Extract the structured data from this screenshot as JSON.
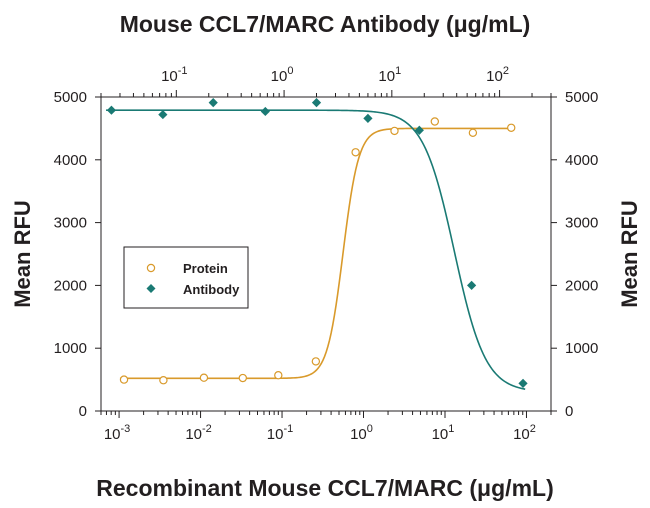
{
  "chart_data": {
    "type": "scatter",
    "title": "",
    "bottom_axis": {
      "label": "Recombinant Mouse CCL7/MARC (μg/mL)",
      "scale": "log",
      "range": [
        0.0006,
        200
      ],
      "ticks": [
        {
          "value": 0.001,
          "base": "10",
          "exp": "-3"
        },
        {
          "value": 0.01,
          "base": "10",
          "exp": "-2"
        },
        {
          "value": 0.1,
          "base": "10",
          "exp": "-1"
        },
        {
          "value": 1,
          "base": "10",
          "exp": "0"
        },
        {
          "value": 10,
          "base": "10",
          "exp": "1"
        },
        {
          "value": 100,
          "base": "10",
          "exp": "2"
        }
      ]
    },
    "top_axis": {
      "label": "Mouse CCL7/MARC Antibody (μg/mL)",
      "scale": "log",
      "range": [
        0.02,
        300
      ],
      "ticks": [
        {
          "value": 0.1,
          "base": "10",
          "exp": "-1"
        },
        {
          "value": 1,
          "base": "10",
          "exp": "0"
        },
        {
          "value": 10,
          "base": "10",
          "exp": "1"
        },
        {
          "value": 100,
          "base": "10",
          "exp": "2"
        }
      ]
    },
    "left_axis": {
      "label": "Mean RFU",
      "range": [
        0,
        5000
      ],
      "ticks": [
        0,
        1000,
        2000,
        3000,
        4000,
        5000
      ]
    },
    "right_axis": {
      "label": "Mean RFU",
      "range": [
        0,
        5000
      ],
      "ticks": [
        0,
        1000,
        2000,
        3000,
        4000,
        5000
      ]
    },
    "legend": {
      "placement": "middle-left"
    },
    "series": [
      {
        "name": "Protein",
        "axis": "bottom",
        "marker": "open-circle",
        "color": "#d99a2b",
        "x": [
          0.00115,
          0.0035,
          0.011,
          0.033,
          0.09,
          0.26,
          0.8,
          2.4,
          7.5,
          22,
          65
        ],
        "y": [
          500,
          490,
          530,
          525,
          570,
          790,
          4120,
          4460,
          4610,
          4430,
          4510
        ],
        "fit": {
          "bottom": 520,
          "top": 4500,
          "ec50": 0.56,
          "hill": 4.5
        }
      },
      {
        "name": "Antibody",
        "axis": "top",
        "marker": "filled-diamond",
        "color": "#1a7a74",
        "x": [
          0.025,
          0.075,
          0.22,
          0.67,
          2,
          6,
          18,
          55,
          165
        ],
        "y": [
          4790,
          4720,
          4910,
          4770,
          4910,
          4660,
          4470,
          2000,
          440
        ],
        "fit": {
          "bottom": 300,
          "top": 4790,
          "ic50": 38,
          "hill": 3.0
        }
      }
    ]
  }
}
